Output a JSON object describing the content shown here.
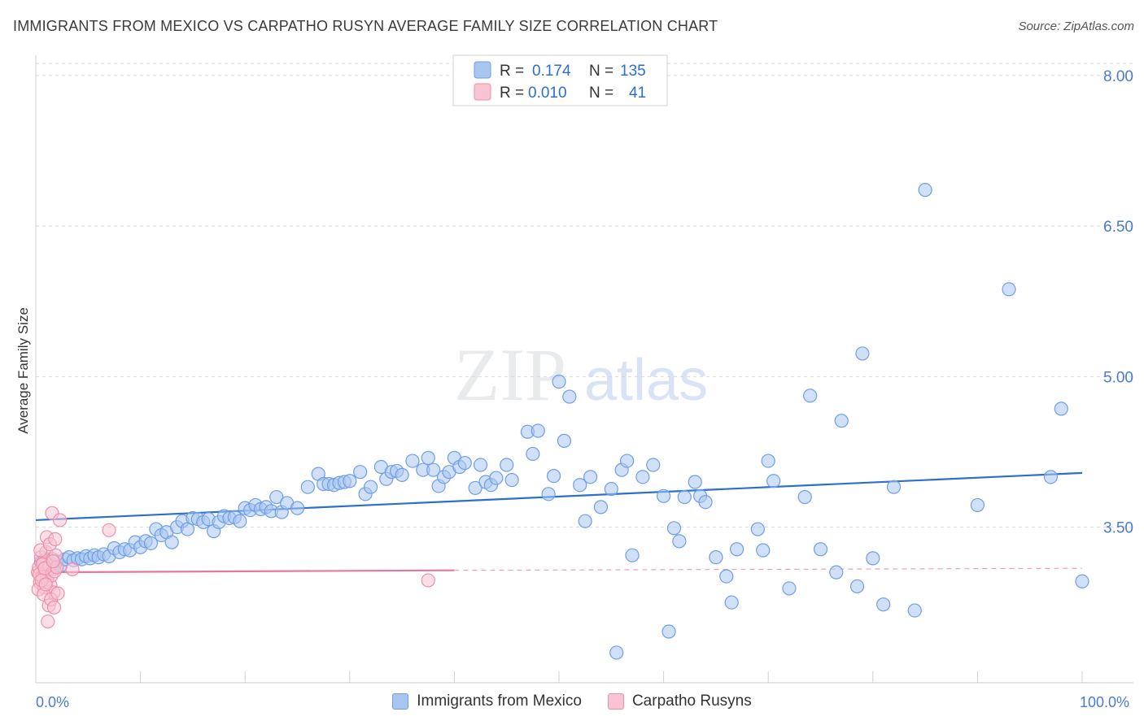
{
  "title": "IMMIGRANTS FROM MEXICO VS CARPATHO RUSYN AVERAGE FAMILY SIZE CORRELATION CHART",
  "source": "Source: ZipAtlas.com",
  "watermark": {
    "zip": "ZIP",
    "atlas": "atlas"
  },
  "colors": {
    "blue_fill": "#a9c6f0",
    "blue_stroke": "#6f9ee6",
    "blue_line": "#2c6fd1",
    "pink_fill": "#f8c4d3",
    "pink_stroke": "#ec8fab",
    "pink_line": "#e7779b",
    "tick_color": "#4a7bd0",
    "grid": "#d9d9d9"
  },
  "legend": {
    "rows": [
      {
        "r_label": "R =",
        "r_value": "0.174",
        "n_label": "N =",
        "n_value": "135"
      },
      {
        "r_label": "R =",
        "r_value": "0.010",
        "n_label": "N =",
        "n_value": "41"
      }
    ]
  },
  "bottom_legend": {
    "series1": "Immigrants from Mexico",
    "series2": "Carpatho Rusyns"
  },
  "chart_data": {
    "type": "scatter",
    "title": "IMMIGRANTS FROM MEXICO VS CARPATHO RUSYN AVERAGE FAMILY SIZE CORRELATION CHART",
    "xlabel": "",
    "ylabel": "Average Family Size",
    "xlim": [
      0,
      105
    ],
    "ylim": [
      1.95,
      8.25
    ],
    "x_tick_labels": [
      "0.0%",
      "100.0%"
    ],
    "y_ticks": [
      3.5,
      5.0,
      6.5,
      8.0
    ],
    "y_tick_labels": [
      "3.50",
      "5.00",
      "6.50",
      "8.00"
    ],
    "series": [
      {
        "name": "Immigrants from Mexico",
        "r": 0.174,
        "n": 135,
        "trend": {
          "x0": 0,
          "y0": 3.57,
          "x1": 100,
          "y1": 4.04
        },
        "points": [
          [
            0.5,
            3.15
          ],
          [
            0.8,
            3.12
          ],
          [
            1.0,
            3.18
          ],
          [
            1.2,
            3.1
          ],
          [
            1.4,
            3.14
          ],
          [
            1.6,
            3.08
          ],
          [
            1.8,
            3.12
          ],
          [
            2.0,
            3.16
          ],
          [
            2.4,
            3.12
          ],
          [
            2.8,
            3.18
          ],
          [
            3.2,
            3.2
          ],
          [
            3.6,
            3.17
          ],
          [
            4.0,
            3.19
          ],
          [
            4.4,
            3.18
          ],
          [
            4.8,
            3.21
          ],
          [
            5.2,
            3.19
          ],
          [
            5.6,
            3.22
          ],
          [
            6.0,
            3.2
          ],
          [
            6.5,
            3.23
          ],
          [
            7.0,
            3.21
          ],
          [
            7.5,
            3.29
          ],
          [
            8.0,
            3.25
          ],
          [
            8.5,
            3.28
          ],
          [
            9.0,
            3.27
          ],
          [
            9.5,
            3.35
          ],
          [
            10.0,
            3.3
          ],
          [
            10.5,
            3.36
          ],
          [
            11.0,
            3.34
          ],
          [
            11.5,
            3.48
          ],
          [
            12.0,
            3.42
          ],
          [
            12.5,
            3.45
          ],
          [
            13.0,
            3.35
          ],
          [
            13.5,
            3.5
          ],
          [
            14.0,
            3.56
          ],
          [
            14.5,
            3.48
          ],
          [
            15.0,
            3.59
          ],
          [
            15.5,
            3.58
          ],
          [
            16.0,
            3.55
          ],
          [
            16.5,
            3.58
          ],
          [
            17.0,
            3.46
          ],
          [
            17.5,
            3.55
          ],
          [
            18.0,
            3.61
          ],
          [
            18.5,
            3.59
          ],
          [
            19.0,
            3.6
          ],
          [
            19.5,
            3.56
          ],
          [
            20.0,
            3.69
          ],
          [
            20.5,
            3.67
          ],
          [
            21.0,
            3.72
          ],
          [
            21.5,
            3.68
          ],
          [
            22.0,
            3.7
          ],
          [
            22.5,
            3.66
          ],
          [
            23.0,
            3.8
          ],
          [
            23.5,
            3.65
          ],
          [
            24.0,
            3.74
          ],
          [
            25.0,
            3.69
          ],
          [
            26.0,
            3.9
          ],
          [
            27.0,
            4.03
          ],
          [
            27.5,
            3.93
          ],
          [
            28.0,
            3.93
          ],
          [
            28.5,
            3.92
          ],
          [
            29.0,
            3.94
          ],
          [
            29.5,
            3.95
          ],
          [
            30.0,
            3.96
          ],
          [
            31.0,
            4.05
          ],
          [
            31.5,
            3.83
          ],
          [
            32.0,
            3.9
          ],
          [
            33.0,
            4.1
          ],
          [
            33.5,
            3.98
          ],
          [
            34.0,
            4.05
          ],
          [
            34.5,
            4.06
          ],
          [
            35.0,
            4.02
          ],
          [
            36.0,
            4.16
          ],
          [
            37.0,
            4.07
          ],
          [
            37.5,
            4.19
          ],
          [
            38.0,
            4.07
          ],
          [
            38.5,
            3.91
          ],
          [
            39.0,
            4.0
          ],
          [
            39.5,
            4.05
          ],
          [
            40.0,
            4.19
          ],
          [
            40.5,
            4.1
          ],
          [
            41.0,
            4.14
          ],
          [
            42.0,
            3.89
          ],
          [
            42.5,
            4.12
          ],
          [
            43.0,
            3.95
          ],
          [
            43.5,
            3.92
          ],
          [
            44.0,
            3.99
          ],
          [
            45.0,
            4.12
          ],
          [
            45.5,
            3.97
          ],
          [
            47.0,
            4.45
          ],
          [
            47.5,
            4.23
          ],
          [
            48.0,
            4.46
          ],
          [
            49.0,
            3.83
          ],
          [
            49.5,
            4.01
          ],
          [
            50.0,
            4.95
          ],
          [
            50.5,
            4.36
          ],
          [
            51.0,
            4.8
          ],
          [
            52.0,
            3.92
          ],
          [
            52.5,
            3.56
          ],
          [
            53.0,
            4.0
          ],
          [
            54.0,
            3.7
          ],
          [
            55.0,
            3.88
          ],
          [
            56.0,
            4.07
          ],
          [
            56.5,
            4.16
          ],
          [
            57.0,
            3.22
          ],
          [
            58.0,
            4.0
          ],
          [
            59.0,
            4.12
          ],
          [
            60.0,
            3.81
          ],
          [
            61.0,
            3.49
          ],
          [
            61.5,
            3.36
          ],
          [
            62.0,
            3.8
          ],
          [
            63.0,
            3.95
          ],
          [
            63.5,
            3.81
          ],
          [
            64.0,
            3.75
          ],
          [
            65.0,
            3.2
          ],
          [
            66.0,
            3.01
          ],
          [
            66.5,
            2.75
          ],
          [
            67.0,
            3.28
          ],
          [
            69.0,
            3.48
          ],
          [
            69.5,
            3.27
          ],
          [
            70.0,
            4.16
          ],
          [
            70.5,
            3.96
          ],
          [
            72.0,
            2.89
          ],
          [
            73.5,
            3.8
          ],
          [
            74.0,
            4.81
          ],
          [
            75.0,
            3.28
          ],
          [
            76.5,
            3.05
          ],
          [
            77.0,
            4.56
          ],
          [
            78.5,
            2.91
          ],
          [
            79.0,
            5.23
          ],
          [
            80.0,
            3.19
          ],
          [
            81.0,
            2.73
          ],
          [
            82.0,
            3.9
          ],
          [
            84.0,
            2.67
          ],
          [
            85.0,
            6.86
          ],
          [
            90.0,
            3.72
          ],
          [
            93.0,
            5.87
          ],
          [
            97.0,
            4.0
          ],
          [
            98.0,
            4.68
          ],
          [
            100.0,
            2.96
          ],
          [
            55.5,
            2.25
          ],
          [
            60.5,
            2.46
          ]
        ]
      },
      {
        "name": "Carpatho Rusyns",
        "r": 0.01,
        "n": 41,
        "trend": {
          "x0": 0,
          "y0": 3.05,
          "x1": 40,
          "y1": 3.07
        },
        "trend_dashed": {
          "x0": 40,
          "y0": 3.07,
          "x1": 100,
          "y1": 3.09
        },
        "points": [
          [
            0.2,
            3.05
          ],
          [
            0.3,
            3.1
          ],
          [
            0.4,
            2.95
          ],
          [
            0.5,
            3.2
          ],
          [
            0.6,
            3.0
          ],
          [
            0.7,
            3.15
          ],
          [
            0.8,
            2.9
          ],
          [
            0.9,
            3.05
          ],
          [
            1.0,
            3.25
          ],
          [
            1.1,
            2.98
          ],
          [
            1.2,
            3.08
          ],
          [
            1.3,
            3.12
          ],
          [
            1.4,
            2.92
          ],
          [
            1.5,
            3.02
          ],
          [
            1.6,
            3.18
          ],
          [
            1.7,
            2.85
          ],
          [
            1.8,
            3.06
          ],
          [
            1.9,
            3.22
          ],
          [
            2.0,
            3.1
          ],
          [
            0.25,
            2.88
          ],
          [
            0.35,
            3.03
          ],
          [
            0.45,
            3.27
          ],
          [
            0.55,
            2.97
          ],
          [
            0.65,
            3.13
          ],
          [
            0.75,
            2.83
          ],
          [
            0.85,
            3.09
          ],
          [
            0.95,
            2.93
          ],
          [
            1.05,
            3.4
          ],
          [
            1.15,
            2.56
          ],
          [
            1.25,
            2.72
          ],
          [
            1.35,
            3.33
          ],
          [
            1.45,
            2.78
          ],
          [
            1.55,
            3.64
          ],
          [
            1.65,
            3.16
          ],
          [
            1.75,
            2.7
          ],
          [
            1.85,
            3.38
          ],
          [
            2.1,
            2.84
          ],
          [
            2.3,
            3.57
          ],
          [
            3.5,
            3.08
          ],
          [
            7.0,
            3.47
          ],
          [
            37.5,
            2.97
          ]
        ]
      }
    ]
  }
}
